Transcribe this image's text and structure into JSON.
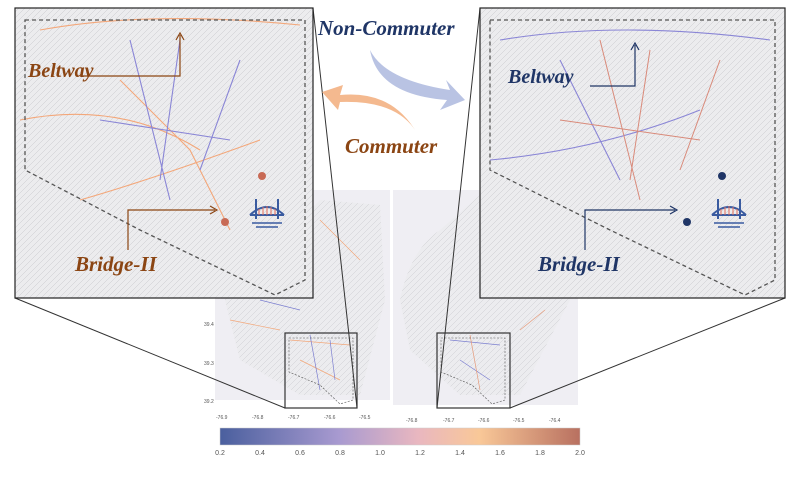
{
  "labels": {
    "non_commuter": "Non-Commuter",
    "commuter": "Commuter",
    "left_beltway": "Beltway",
    "left_bridge": "Bridge-II",
    "right_beltway": "Beltway",
    "right_bridge": "Bridge-II"
  },
  "left_map": {
    "y_ticks": [
      "39.4",
      "39.3",
      "39.2"
    ],
    "x_ticks": [
      "-76.9",
      "-76.8",
      "-76.7",
      "-76.6",
      "-76.5"
    ]
  },
  "right_map": {
    "x_ticks": [
      "-76.8",
      "-76.7",
      "-76.6",
      "-76.5",
      "-76.4"
    ]
  },
  "colorbar": {
    "ticks": [
      "0.2",
      "0.4",
      "0.6",
      "0.8",
      "1.0",
      "1.2",
      "1.4",
      "1.6",
      "1.8",
      "2.0"
    ],
    "range": [
      0.2,
      2.0
    ],
    "colors": [
      "#4a5f9e",
      "#a89ad0",
      "#e9b7c0",
      "#f9c898",
      "#b87060"
    ]
  },
  "colors": {
    "commuter": "#8b4513",
    "non_commuter": "#1f3566",
    "commuter_arrow": "#f4b98f",
    "non_commuter_arrow": "#b9c3e3"
  }
}
